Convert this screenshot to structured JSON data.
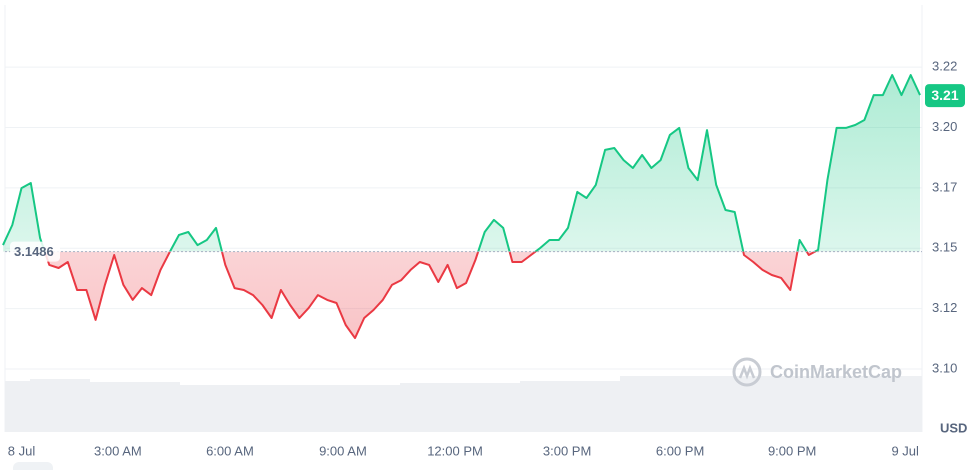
{
  "chart_data": {
    "type": "line",
    "series": [
      {
        "name": "Price",
        "values": [
          3.1513,
          3.1596,
          3.1749,
          3.177,
          3.1542,
          3.1431,
          3.1418,
          3.1443,
          3.1327,
          3.1327,
          3.1203,
          3.1348,
          3.1472,
          3.1348,
          3.1286,
          3.1335,
          3.1306,
          3.141,
          3.1484,
          3.1555,
          3.1567,
          3.1513,
          3.1534,
          3.1584,
          3.1431,
          3.1335,
          3.1327,
          3.1306,
          3.1265,
          3.1211,
          3.1327,
          3.1265,
          3.1211,
          3.1253,
          3.1306,
          3.1286,
          3.1273,
          3.1182,
          3.1128,
          3.1211,
          3.1244,
          3.1286,
          3.1348,
          3.1368,
          3.141,
          3.1443,
          3.1431,
          3.136,
          3.1431,
          3.1335,
          3.1356,
          3.1451,
          3.1567,
          3.1617,
          3.1584,
          3.1443,
          3.1443,
          3.1472,
          3.1501,
          3.1534,
          3.1534,
          3.1584,
          3.1733,
          3.1708,
          3.1762,
          3.1907,
          3.1915,
          3.1865,
          3.1832,
          3.1886,
          3.1832,
          3.1865,
          3.1969,
          3.1998,
          3.1832,
          3.1782,
          3.1989,
          3.1762,
          3.1658,
          3.165,
          3.1472,
          3.1443,
          3.141,
          3.1389,
          3.1377,
          3.1327,
          3.1534,
          3.1472,
          3.1493,
          3.1782,
          3.1998,
          3.1998,
          3.201,
          3.2031,
          3.2134,
          3.2134,
          3.2217,
          3.2134,
          3.2217,
          3.2134
        ]
      }
    ],
    "up_color": "#16c784",
    "down_color": "#ea3943",
    "baseline": 3.1486,
    "current_price": 3.2134,
    "current_price_label": "3.21",
    "xlim": [
      0,
      99
    ],
    "xticks": [
      {
        "value": 2,
        "label": "8 Jul"
      },
      {
        "value": 12.4,
        "label": "3:00 AM"
      },
      {
        "value": 24.5,
        "label": "6:00 AM"
      },
      {
        "value": 36.7,
        "label": "9:00 AM"
      },
      {
        "value": 48.8,
        "label": "12:00 PM"
      },
      {
        "value": 60.9,
        "label": "3:00 PM"
      },
      {
        "value": 73.1,
        "label": "6:00 PM"
      },
      {
        "value": 85.2,
        "label": "9:00 PM"
      },
      {
        "value": 97.4,
        "label": "9 Jul"
      }
    ],
    "ylim": [
      3.0739,
      3.2507
    ],
    "yticks": [
      {
        "value": 3.1,
        "label": "3.10"
      },
      {
        "value": 3.125,
        "label": "3.12"
      },
      3.15,
      {
        "value": 3.175,
        "label": "3.17"
      },
      {
        "value": 3.2,
        "label": "3.20"
      },
      {
        "value": 3.225,
        "label": "3.22"
      }
    ],
    "grid": true,
    "currency": "USD",
    "watermark": "CoinMarketCap"
  }
}
